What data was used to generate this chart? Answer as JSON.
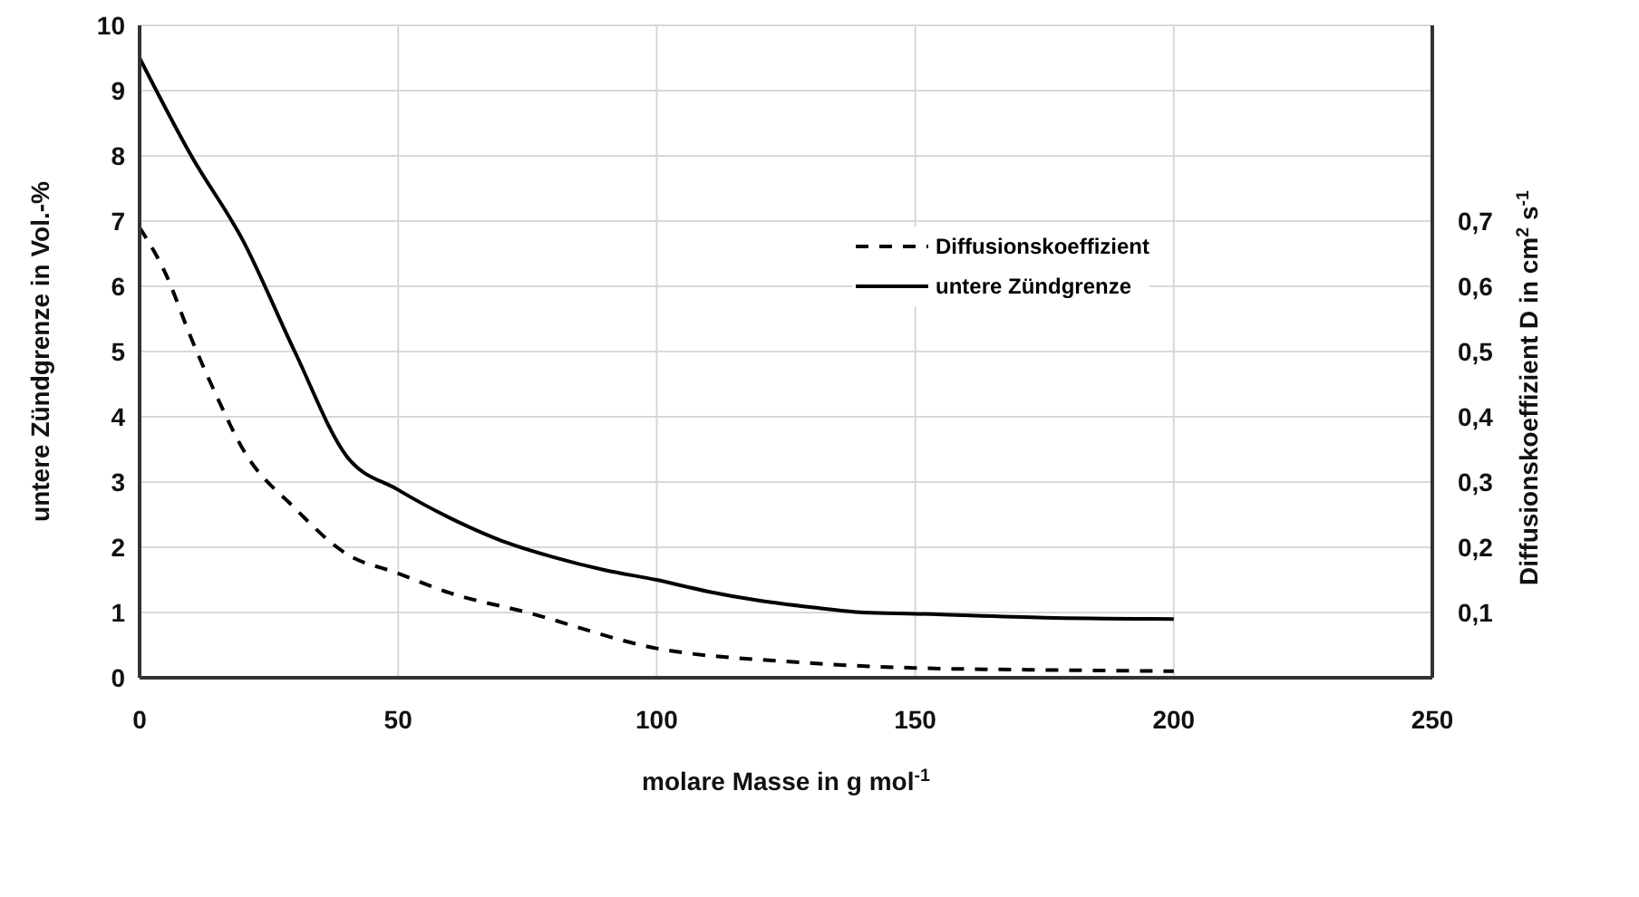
{
  "chart_data": {
    "type": "line",
    "xlabel": "molare Masse in g mol$^{-1}$",
    "ylabel": "untere Zündgrenze in Vol.-%",
    "y2label": "Diffusionskoeffizient D in cm$^{2}$ s$^{-1}$",
    "xlim": [
      0,
      250
    ],
    "xticks": [
      0,
      50,
      100,
      150,
      200,
      250
    ],
    "ylim": [
      0,
      10
    ],
    "yticks": [
      0,
      1,
      2,
      3,
      4,
      5,
      6,
      7,
      8,
      9,
      10
    ],
    "y2lim": [
      0,
      1
    ],
    "y2ticks": [
      {
        "value": 0.1,
        "label": "0,1"
      },
      {
        "value": 0.2,
        "label": "0,2"
      },
      {
        "value": 0.3,
        "label": "0,3"
      },
      {
        "value": 0.4,
        "label": "0,4"
      },
      {
        "value": 0.5,
        "label": "0,5"
      },
      {
        "value": 0.6,
        "label": "0,6"
      },
      {
        "value": 0.7,
        "label": "0,7"
      }
    ],
    "grid": true,
    "legend": "top right",
    "marker": "none",
    "series": [
      {
        "name": "Diffusionskoeffizient",
        "color": "#000000",
        "axis": "y2",
        "line_style": "dashed",
        "x": [
          0,
          5,
          10,
          15,
          20,
          30,
          40,
          50,
          60,
          75,
          100,
          125,
          150,
          175,
          200
        ],
        "values": [
          0.69,
          0.62,
          0.52,
          0.43,
          0.35,
          0.26,
          0.19,
          0.16,
          0.13,
          0.1,
          0.045,
          0.025,
          0.015,
          0.012,
          0.01
        ]
      },
      {
        "name": "untere Zündgrenze",
        "color": "#000000",
        "axis": "y",
        "line_style": "solid",
        "x": [
          0,
          10,
          20,
          30,
          40,
          50,
          60,
          70,
          80,
          90,
          100,
          110,
          120,
          130,
          140,
          150,
          175,
          200
        ],
        "values": [
          9.5,
          8.0,
          6.7,
          5.0,
          3.4,
          2.88,
          2.45,
          2.1,
          1.85,
          1.65,
          1.5,
          1.32,
          1.18,
          1.08,
          1.0,
          0.98,
          0.92,
          0.9
        ]
      }
    ]
  }
}
